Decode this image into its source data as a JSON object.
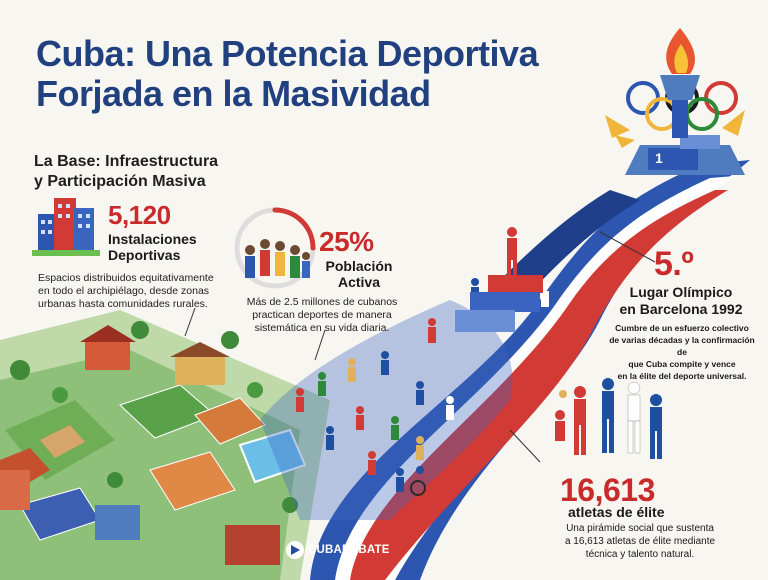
{
  "title": {
    "line1": "Cuba: Una Potencia Deportiva",
    "line2": "Forjada en la Masividad"
  },
  "section_heading": {
    "line1": "La Base: Infraestructura",
    "line2": "y Participación Masiva"
  },
  "stats": {
    "installations": {
      "value": "5,120",
      "label_line1": "Instalaciones",
      "label_line2": "Deportivas",
      "desc_line1": "Espacios distribuidos equitativamente",
      "desc_line2": "en todo el archipiélago, desde zonas",
      "desc_line3": "urbanas hasta comunidades rurales."
    },
    "active_population": {
      "value": "25%",
      "label_line1": "Población",
      "label_line2": "Activa",
      "desc_line1": "Más de 2.5 millones de cubanos",
      "desc_line2": "practican deportes de manera",
      "desc_line3": "sistemática en su vida diaria.",
      "fraction": 0.25
    },
    "olympic_place": {
      "value": "5.º",
      "label_line1": "Lugar Olímpico",
      "label_line2": "en Barcelona 1992",
      "desc_line1": "Cumbre de un esfuerzo colectivo",
      "desc_line2": "de varias décadas y la confirmación de",
      "desc_line3": "que Cuba compite y vence",
      "desc_line4": "en la élite del deporte universal."
    },
    "elite_athletes": {
      "value": "16,613",
      "label": "atletas de élite",
      "desc_line1": "Una pirámide social que sustenta",
      "desc_line2": "a 16,613 atletas de élite mediante",
      "desc_line3": "técnica y talento natural."
    }
  },
  "podium_number": "1",
  "brand": {
    "name": "CUBADEBATE",
    "icon": "cubadebate-logo-icon"
  },
  "icons": {
    "buildings": "city-buildings-icon",
    "crowd": "people-crowd-icon",
    "torch": "olympic-torch-icon",
    "rings": "olympic-rings-icon"
  },
  "colors": {
    "title_blue": "#20407f",
    "accent_red": "#c92b2b",
    "ribbon_blue": "#2c56b0",
    "ribbon_red": "#d23a35",
    "grass_green": "#5aa24a"
  }
}
